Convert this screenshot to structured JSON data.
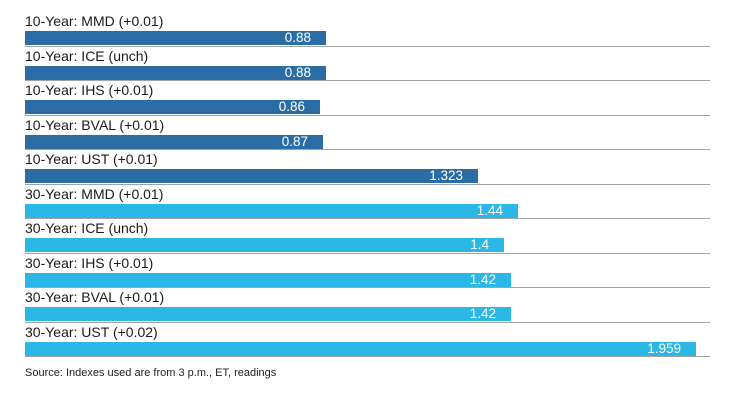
{
  "colors": {
    "ten_year_bar": "#2a6da4",
    "thirty_year_bar": "#2bb8e6",
    "baseline_gray": "#a3a3a3",
    "label_text": "#1b1b1b",
    "value_text": "#ffffff"
  },
  "chart_data": {
    "type": "bar",
    "orientation": "horizontal",
    "title": "",
    "xlabel": "",
    "ylabel": "",
    "xlim": [
      0,
      2
    ],
    "grid": "per-row gray baselines extending full axis width",
    "legend_position": "none",
    "source_note": "Source: Indexes used are from 3 p.m., ET, readings",
    "categories": [
      "10-Year: MMD (+0.01)",
      "10-Year: ICE (unch)",
      "10-Year: IHS (+0.01)",
      "10-Year: BVAL (+0.01)",
      "10-Year: UST (+0.01)",
      "30-Year: MMD (+0.01)",
      "30-Year: ICE (unch)",
      "30-Year: IHS (+0.01)",
      "30-Year: BVAL (+0.01)",
      "30-Year: UST (+0.02)"
    ],
    "values": [
      0.88,
      0.88,
      0.86,
      0.87,
      1.323,
      1.44,
      1.4,
      1.42,
      1.42,
      1.959
    ],
    "value_labels": [
      "0.88",
      "0.88",
      "0.86",
      "0.87",
      "1.323",
      "1.44",
      "1.4",
      "1.42",
      "1.42",
      "1.959"
    ],
    "groups": [
      "10-Year",
      "10-Year",
      "10-Year",
      "10-Year",
      "10-Year",
      "30-Year",
      "30-Year",
      "30-Year",
      "30-Year",
      "30-Year"
    ]
  }
}
